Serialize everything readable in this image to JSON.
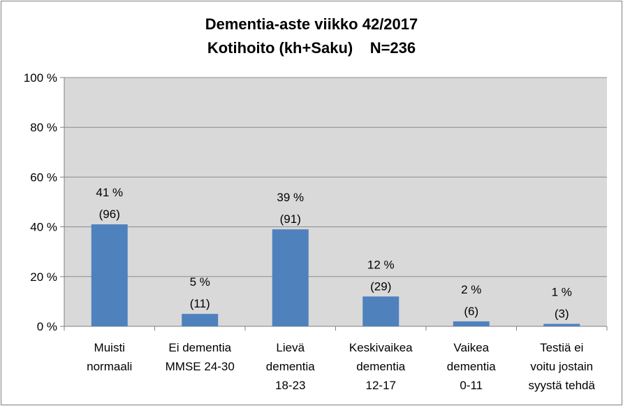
{
  "chart_data": {
    "type": "bar",
    "title": "Dementia-aste viikko 42/2017",
    "subtitle": "Kotihoito (kh+Saku)    N=236",
    "categories": [
      [
        "Muisti",
        "normaali"
      ],
      [
        "Ei dementia",
        "MMSE 24-30"
      ],
      [
        "Lievä",
        "dementia",
        "18-23"
      ],
      [
        "Keskivaikea",
        "dementia",
        "12-17"
      ],
      [
        "Vaikea",
        "dementia",
        "0-11"
      ],
      [
        "Testiä ei",
        "voitu jostain",
        "syystä tehdä"
      ]
    ],
    "values": [
      41,
      5,
      39,
      12,
      2,
      1
    ],
    "data_labels": [
      [
        "41 %",
        "(96)"
      ],
      [
        "5 %",
        "(11)"
      ],
      [
        "39 %",
        "(91)"
      ],
      [
        "12 %",
        "(29)"
      ],
      [
        "2 %",
        "(6)"
      ],
      [
        "1 %",
        "(3)"
      ]
    ],
    "y_ticks": [
      "0 %",
      "20 %",
      "40 %",
      "60 %",
      "80 %",
      "100 %"
    ],
    "ylim": [
      0,
      100
    ],
    "grid": true,
    "colors": {
      "bar": "#4f81bd",
      "plot_bg": "#d9d9d9",
      "grid": "#8c8c8c"
    }
  }
}
